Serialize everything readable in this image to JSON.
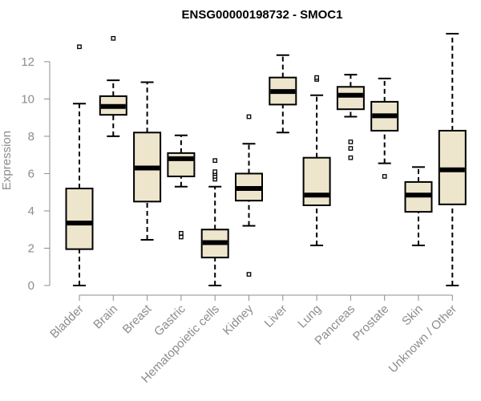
{
  "colors": {
    "box_fill": "#ede6cd",
    "stroke": "#000000",
    "axis": "#8c8c8c",
    "label_text": "#8c8c8c"
  },
  "chart_data": {
    "type": "boxplot",
    "title": "ENSG00000198732 - SMOC1",
    "xlabel": "",
    "ylabel": "Expression",
    "ylim": [
      0,
      13.5
    ],
    "yticks": [
      0,
      2,
      4,
      6,
      8,
      10,
      12
    ],
    "grid": false,
    "categories": [
      "Bladder",
      "Brain",
      "Breast",
      "Gastric",
      "Hematopoietic cells",
      "Kidney",
      "Liver",
      "Lung",
      "Pancreas",
      "Prostate",
      "Skin",
      "Unknown / Other"
    ],
    "boxes": [
      {
        "whisker_low": 0.0,
        "q1": 1.95,
        "median": 3.35,
        "q3": 5.2,
        "whisker_high": 9.75,
        "outliers": [
          12.8
        ]
      },
      {
        "whisker_low": 8.0,
        "q1": 9.15,
        "median": 9.6,
        "q3": 10.15,
        "whisker_high": 11.0,
        "outliers": [
          13.25
        ]
      },
      {
        "whisker_low": 2.45,
        "q1": 4.5,
        "median": 6.3,
        "q3": 8.2,
        "whisker_high": 10.9,
        "outliers": []
      },
      {
        "whisker_low": 5.3,
        "q1": 5.85,
        "median": 6.8,
        "q3": 7.1,
        "whisker_high": 8.05,
        "outliers": [
          2.6,
          2.8
        ]
      },
      {
        "whisker_low": 0.0,
        "q1": 1.5,
        "median": 2.3,
        "q3": 3.0,
        "whisker_high": 5.3,
        "outliers": [
          5.7,
          5.85,
          6.0,
          6.1,
          6.7
        ]
      },
      {
        "whisker_low": 3.2,
        "q1": 4.55,
        "median": 5.2,
        "q3": 6.0,
        "whisker_high": 7.6,
        "outliers": [
          9.05,
          0.6
        ]
      },
      {
        "whisker_low": 8.2,
        "q1": 9.7,
        "median": 10.4,
        "q3": 11.15,
        "whisker_high": 12.35,
        "outliers": []
      },
      {
        "whisker_low": 2.15,
        "q1": 4.3,
        "median": 4.85,
        "q3": 6.85,
        "whisker_high": 10.2,
        "outliers": [
          11.05,
          11.15
        ]
      },
      {
        "whisker_low": 9.05,
        "q1": 9.45,
        "median": 10.2,
        "q3": 10.65,
        "whisker_high": 11.3,
        "outliers": [
          7.7,
          7.35,
          6.85
        ]
      },
      {
        "whisker_low": 6.55,
        "q1": 8.3,
        "median": 9.1,
        "q3": 9.85,
        "whisker_high": 11.1,
        "outliers": [
          5.85
        ]
      },
      {
        "whisker_low": 2.15,
        "q1": 3.95,
        "median": 4.85,
        "q3": 5.55,
        "whisker_high": 6.35,
        "outliers": []
      },
      {
        "whisker_low": 0.0,
        "q1": 4.35,
        "median": 6.2,
        "q3": 8.3,
        "whisker_high": 13.5,
        "outliers": []
      }
    ]
  }
}
